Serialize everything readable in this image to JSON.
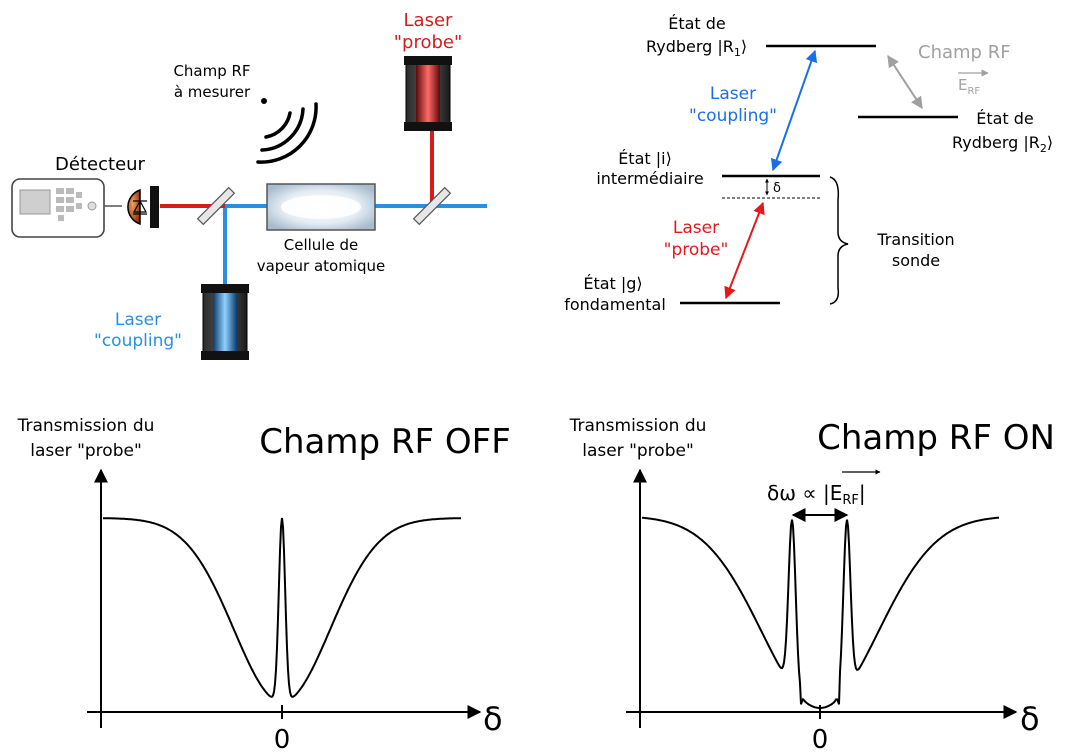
{
  "setup": {
    "detector_label": "Détecteur",
    "rf_label_1": "Champ RF",
    "rf_label_2": "à mesurer",
    "probe_label_1": "Laser",
    "probe_label_2": "\"probe\"",
    "coupling_label_1": "Laser",
    "coupling_label_2": "\"coupling\"",
    "cell_label_1": "Cellule de",
    "cell_label_2": "vapeur atomique"
  },
  "levels": {
    "r1_label_1": "État de",
    "r1_label_2": "Rydberg |R",
    "r1_sub": "1",
    "r1_tail": "⟩",
    "r2_label_1": "État de",
    "r2_label_2": "Rydberg |R",
    "r2_sub": "2",
    "r2_tail": "⟩",
    "rf_label": "Champ RF",
    "erf_E": "E",
    "erf_sub": "RF",
    "coupling_label_1": "Laser",
    "coupling_label_2": "\"coupling\"",
    "probe_label_1": "Laser",
    "probe_label_2": "\"probe\"",
    "i_label_1": "État |i⟩",
    "i_label_2": "intermédiaire",
    "g_label_1": "État |g⟩",
    "g_label_2": "fondamental",
    "delta": "δ",
    "transition_1": "Transition",
    "transition_2": "sonde"
  },
  "plots": {
    "ylabel_1": "Transmission du",
    "ylabel_2": "laser \"probe\"",
    "left_title": "Champ RF OFF",
    "right_title": "Champ RF ON",
    "xaxis_symbol": "δ",
    "zero_tick": "0",
    "split_label_prefix": "δω ∝ |",
    "split_E": "E",
    "split_sub": "RF",
    "split_suffix": "|"
  },
  "colors": {
    "probe": "#d21e1e",
    "coupling": "#2b8fe0",
    "rf_gray": "#a0a0a0",
    "coupling_arrow": "#1a6fe8"
  },
  "icons": [
    "detector-device-icon",
    "photodiode-icon",
    "rf-waves-icon",
    "probe-laser-icon",
    "coupling-laser-icon",
    "vapor-cell-icon",
    "mirror-icon"
  ]
}
